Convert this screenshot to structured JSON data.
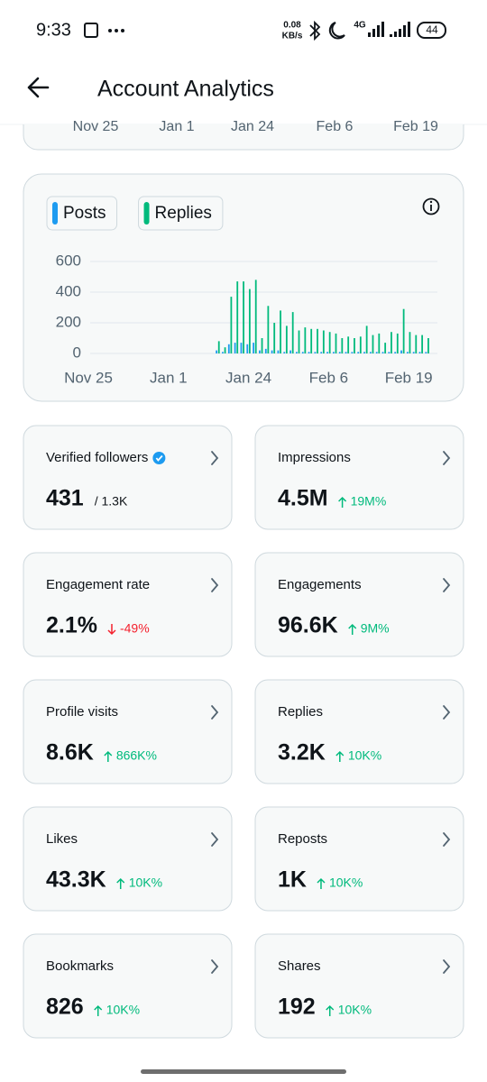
{
  "status_bar": {
    "time": "9:33",
    "net_speed": "0.08",
    "net_unit": "KB/s",
    "network": "4G",
    "battery": "44"
  },
  "header": {
    "title": "Account Analytics"
  },
  "previous_chart": {
    "x_labels": [
      "Nov 25",
      "Jan 1",
      "Jan 24",
      "Feb 6",
      "Feb 19"
    ]
  },
  "chart_data": {
    "type": "bar",
    "categories": [
      "Nov 25",
      null,
      null,
      null,
      null,
      null,
      null,
      null,
      null,
      null,
      null,
      null,
      null,
      "Jan 1",
      null,
      null,
      null,
      null,
      null,
      null,
      null,
      null,
      null,
      null,
      null,
      null,
      "Jan 24",
      null,
      null,
      null,
      null,
      null,
      null,
      null,
      null,
      null,
      null,
      null,
      null,
      "Feb 6",
      null,
      null,
      null,
      null,
      null,
      null,
      null,
      null,
      null,
      null,
      null,
      null,
      "Feb 19",
      null,
      null,
      null,
      null
    ],
    "series": [
      {
        "name": "Posts",
        "color": "#1d9bf0",
        "values": [
          0,
          0,
          0,
          0,
          0,
          0,
          0,
          0,
          0,
          0,
          0,
          0,
          0,
          0,
          0,
          0,
          0,
          0,
          0,
          0,
          0,
          20,
          10,
          60,
          70,
          70,
          60,
          70,
          20,
          30,
          20,
          20,
          10,
          20,
          10,
          10,
          10,
          10,
          10,
          10,
          10,
          10,
          10,
          10,
          10,
          10,
          10,
          10,
          10,
          10,
          10,
          20,
          10,
          10,
          10,
          10,
          0
        ]
      },
      {
        "name": "Replies",
        "color": "#00ba7c",
        "values": [
          0,
          0,
          0,
          0,
          0,
          0,
          0,
          0,
          0,
          0,
          0,
          0,
          0,
          0,
          0,
          0,
          0,
          0,
          0,
          0,
          0,
          80,
          40,
          370,
          470,
          470,
          420,
          480,
          100,
          310,
          200,
          280,
          180,
          270,
          150,
          170,
          160,
          160,
          150,
          140,
          130,
          100,
          110,
          100,
          110,
          180,
          120,
          130,
          70,
          140,
          130,
          290,
          140,
          120,
          120,
          100,
          0
        ]
      }
    ],
    "ylim": [
      0,
      600
    ],
    "yticks": [
      0,
      200,
      400,
      600
    ],
    "grid": true
  },
  "stats": [
    {
      "label": "Verified followers",
      "value": "431",
      "total": "/ 1.3K",
      "verified": true
    },
    {
      "label": "Impressions",
      "value": "4.5M",
      "change": "19M%",
      "direction": "up"
    },
    {
      "label": "Engagement rate",
      "value": "2.1%",
      "change": "-49%",
      "direction": "down"
    },
    {
      "label": "Engagements",
      "value": "96.6K",
      "change": "9M%",
      "direction": "up"
    },
    {
      "label": "Profile visits",
      "value": "8.6K",
      "change": "866K%",
      "direction": "up"
    },
    {
      "label": "Replies",
      "value": "3.2K",
      "change": "10K%",
      "direction": "up"
    },
    {
      "label": "Likes",
      "value": "43.3K",
      "change": "10K%",
      "direction": "up"
    },
    {
      "label": "Reposts",
      "value": "1K",
      "change": "10K%",
      "direction": "up"
    },
    {
      "label": "Bookmarks",
      "value": "826",
      "change": "10K%",
      "direction": "up"
    },
    {
      "label": "Shares",
      "value": "192",
      "change": "10K%",
      "direction": "up"
    }
  ]
}
